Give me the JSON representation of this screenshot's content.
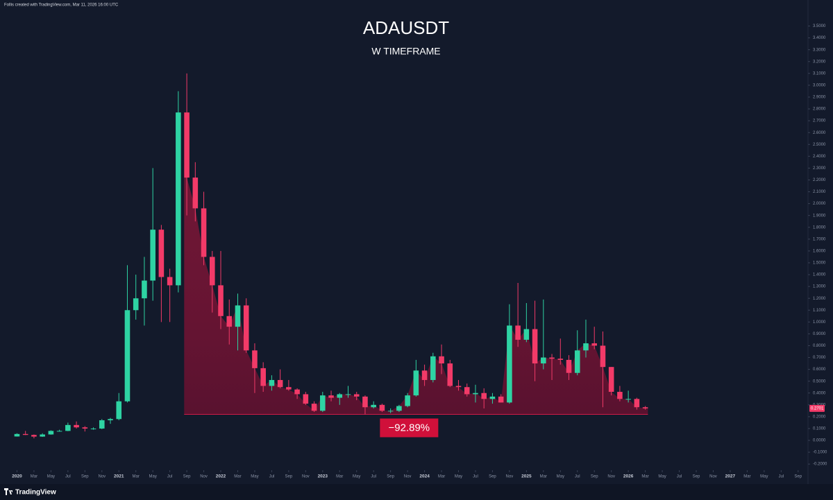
{
  "header": {
    "caption": "Follis created with TradingView.com, Mar 11, 2026 16:00 UTC"
  },
  "footer": {
    "brand": "TradingView"
  },
  "chart_data": {
    "type": "candlestick",
    "title": "ADAUSDT",
    "subtitle": "W TIMEFRAME",
    "up_color": "#2ed3a3",
    "down_color": "#f23a68",
    "x": [
      "2020-01",
      "2020-02",
      "2020-03",
      "2020-04",
      "2020-05",
      "2020-06",
      "2020-07",
      "2020-08",
      "2020-09",
      "2020-10",
      "2020-11",
      "2020-12",
      "2021-01",
      "2021-02",
      "2021-03",
      "2021-04",
      "2021-05",
      "2021-06",
      "2021-07",
      "2021-08",
      "2021-09",
      "2021-10",
      "2021-11",
      "2021-12",
      "2022-01",
      "2022-02",
      "2022-03",
      "2022-04",
      "2022-05",
      "2022-06",
      "2022-07",
      "2022-08",
      "2022-09",
      "2022-10",
      "2022-11",
      "2022-12",
      "2023-01",
      "2023-02",
      "2023-03",
      "2023-04",
      "2023-05",
      "2023-06",
      "2023-07",
      "2023-08",
      "2023-09",
      "2023-10",
      "2023-11",
      "2023-12",
      "2024-01",
      "2024-02",
      "2024-03",
      "2024-04",
      "2024-05",
      "2024-06",
      "2024-07",
      "2024-08",
      "2024-09",
      "2024-10",
      "2024-11",
      "2024-12",
      "2025-01",
      "2025-02",
      "2025-03",
      "2025-04",
      "2025-05",
      "2025-06",
      "2025-07",
      "2025-08",
      "2025-09",
      "2025-10",
      "2025-11",
      "2025-12",
      "2026-01",
      "2026-02",
      "2026-03"
    ],
    "open": [
      0.033,
      0.054,
      0.046,
      0.032,
      0.05,
      0.08,
      0.08,
      0.13,
      0.11,
      0.1,
      0.1,
      0.17,
      0.18,
      0.33,
      1.1,
      1.2,
      1.35,
      1.78,
      1.38,
      1.31,
      2.77,
      2.22,
      1.96,
      1.55,
      1.31,
      1.05,
      0.96,
      1.14,
      0.76,
      0.61,
      0.46,
      0.51,
      0.45,
      0.43,
      0.39,
      0.31,
      0.25,
      0.38,
      0.36,
      0.39,
      0.39,
      0.37,
      0.28,
      0.3,
      0.25,
      0.25,
      0.29,
      0.38,
      0.59,
      0.51,
      0.71,
      0.65,
      0.46,
      0.45,
      0.39,
      0.4,
      0.35,
      0.37,
      0.32,
      0.97,
      0.85,
      0.94,
      0.65,
      0.7,
      0.69,
      0.68,
      0.57,
      0.76,
      0.82,
      0.8,
      0.62,
      0.41,
      0.35,
      0.35,
      0.28
    ],
    "high": [
      0.06,
      0.08,
      0.05,
      0.06,
      0.085,
      0.09,
      0.15,
      0.16,
      0.12,
      0.11,
      0.18,
      0.19,
      0.4,
      1.48,
      1.4,
      1.55,
      2.3,
      1.82,
      1.45,
      2.95,
      3.1,
      2.35,
      2.1,
      1.6,
      1.6,
      1.19,
      1.24,
      1.2,
      0.82,
      0.66,
      0.55,
      0.6,
      0.51,
      0.44,
      0.41,
      0.33,
      0.41,
      0.42,
      0.4,
      0.46,
      0.41,
      0.38,
      0.33,
      0.31,
      0.27,
      0.3,
      0.4,
      0.68,
      0.64,
      0.74,
      0.81,
      0.68,
      0.51,
      0.48,
      0.47,
      0.44,
      0.4,
      0.39,
      1.15,
      1.33,
      1.16,
      1.18,
      1.19,
      0.73,
      0.86,
      0.72,
      0.93,
      1.02,
      0.96,
      0.92,
      0.62,
      0.46,
      0.42,
      0.36,
      0.29
    ],
    "low": [
      0.032,
      0.045,
      0.017,
      0.03,
      0.048,
      0.075,
      0.078,
      0.1,
      0.075,
      0.09,
      0.095,
      0.14,
      0.17,
      0.32,
      1.02,
      0.97,
      1.18,
      1.0,
      1.0,
      1.25,
      1.9,
      1.85,
      1.48,
      1.08,
      0.94,
      0.81,
      0.76,
      0.74,
      0.4,
      0.41,
      0.42,
      0.44,
      0.42,
      0.35,
      0.3,
      0.24,
      0.24,
      0.33,
      0.3,
      0.36,
      0.34,
      0.22,
      0.27,
      0.24,
      0.23,
      0.24,
      0.28,
      0.37,
      0.46,
      0.49,
      0.56,
      0.45,
      0.42,
      0.37,
      0.32,
      0.27,
      0.31,
      0.32,
      0.31,
      0.79,
      0.83,
      0.5,
      0.6,
      0.51,
      0.64,
      0.51,
      0.55,
      0.7,
      0.77,
      0.28,
      0.38,
      0.33,
      0.32,
      0.26,
      0.26
    ],
    "close": [
      0.054,
      0.046,
      0.032,
      0.05,
      0.08,
      0.08,
      0.13,
      0.11,
      0.1,
      0.1,
      0.17,
      0.18,
      0.33,
      1.1,
      1.2,
      1.35,
      1.78,
      1.38,
      1.31,
      2.77,
      2.22,
      1.96,
      1.55,
      1.31,
      1.05,
      0.96,
      1.14,
      0.76,
      0.61,
      0.46,
      0.51,
      0.45,
      0.43,
      0.39,
      0.31,
      0.25,
      0.38,
      0.36,
      0.39,
      0.39,
      0.37,
      0.28,
      0.3,
      0.25,
      0.25,
      0.29,
      0.38,
      0.59,
      0.51,
      0.71,
      0.65,
      0.46,
      0.45,
      0.39,
      0.4,
      0.35,
      0.37,
      0.32,
      0.97,
      0.85,
      0.94,
      0.65,
      0.7,
      0.69,
      0.68,
      0.57,
      0.76,
      0.82,
      0.8,
      0.62,
      0.41,
      0.35,
      0.35,
      0.28,
      0.2701
    ],
    "last_price": {
      "value": 0.2701,
      "label": "0.2701"
    },
    "range": {
      "from": "2021-09",
      "to": "2026-03",
      "low": 0.22,
      "label": "−92.89%"
    },
    "xlim": [
      "2019-11",
      "2027-10"
    ],
    "xticks": [
      {
        "value": "2020-01",
        "label": "2020"
      },
      {
        "value": "2020-03",
        "label": "Mar"
      },
      {
        "value": "2020-05",
        "label": "May"
      },
      {
        "value": "2020-07",
        "label": "Jul"
      },
      {
        "value": "2020-09",
        "label": "Sep"
      },
      {
        "value": "2020-11",
        "label": "Nov"
      },
      {
        "value": "2021-01",
        "label": "2021"
      },
      {
        "value": "2021-03",
        "label": "Mar"
      },
      {
        "value": "2021-05",
        "label": "May"
      },
      {
        "value": "2021-07",
        "label": "Jul"
      },
      {
        "value": "2021-09",
        "label": "Sep"
      },
      {
        "value": "2021-11",
        "label": "Nov"
      },
      {
        "value": "2022-01",
        "label": "2022"
      },
      {
        "value": "2022-03",
        "label": "Mar"
      },
      {
        "value": "2022-05",
        "label": "May"
      },
      {
        "value": "2022-07",
        "label": "Jul"
      },
      {
        "value": "2022-09",
        "label": "Sep"
      },
      {
        "value": "2022-11",
        "label": "Nov"
      },
      {
        "value": "2023-01",
        "label": "2023"
      },
      {
        "value": "2023-03",
        "label": "Mar"
      },
      {
        "value": "2023-05",
        "label": "May"
      },
      {
        "value": "2023-07",
        "label": "Jul"
      },
      {
        "value": "2023-09",
        "label": "Sep"
      },
      {
        "value": "2023-11",
        "label": "Nov"
      },
      {
        "value": "2024-01",
        "label": "2024"
      },
      {
        "value": "2024-03",
        "label": "Mar"
      },
      {
        "value": "2024-05",
        "label": "May"
      },
      {
        "value": "2024-07",
        "label": "Jul"
      },
      {
        "value": "2024-09",
        "label": "Sep"
      },
      {
        "value": "2024-11",
        "label": "Nov"
      },
      {
        "value": "2025-01",
        "label": "2025"
      },
      {
        "value": "2025-03",
        "label": "Mar"
      },
      {
        "value": "2025-05",
        "label": "May"
      },
      {
        "value": "2025-07",
        "label": "Jul"
      },
      {
        "value": "2025-09",
        "label": "Sep"
      },
      {
        "value": "2025-11",
        "label": "Nov"
      },
      {
        "value": "2026-01",
        "label": "2026"
      },
      {
        "value": "2026-03",
        "label": "Mar"
      },
      {
        "value": "2026-05",
        "label": "May"
      },
      {
        "value": "2026-07",
        "label": "Jul"
      },
      {
        "value": "2026-09",
        "label": "Sep"
      },
      {
        "value": "2026-11",
        "label": "Nov"
      },
      {
        "value": "2027-01",
        "label": "2027"
      },
      {
        "value": "2027-03",
        "label": "Mar"
      },
      {
        "value": "2027-05",
        "label": "May"
      },
      {
        "value": "2027-07",
        "label": "Jul"
      },
      {
        "value": "2027-09",
        "label": "Sep"
      }
    ],
    "ylim": [
      -0.24,
      3.72
    ],
    "yticks": [
      {
        "value": -0.2,
        "label": "-0.2000"
      },
      {
        "value": -0.1,
        "label": "-0.1000"
      },
      {
        "value": 0,
        "label": "0.0000"
      },
      {
        "value": 0.1,
        "label": "0.1000"
      },
      {
        "value": 0.2,
        "label": "0.2000"
      },
      {
        "value": 0.3,
        "label": "0.3000"
      },
      {
        "value": 0.4,
        "label": "0.4000"
      },
      {
        "value": 0.5,
        "label": "0.5000"
      },
      {
        "value": 0.6,
        "label": "0.6000"
      },
      {
        "value": 0.7,
        "label": "0.7000"
      },
      {
        "value": 0.8,
        "label": "0.8000"
      },
      {
        "value": 0.9,
        "label": "0.9000"
      },
      {
        "value": 1.0,
        "label": "1.0000"
      },
      {
        "value": 1.1,
        "label": "1.1000"
      },
      {
        "value": 1.2,
        "label": "1.2000"
      },
      {
        "value": 1.3,
        "label": "1.3000"
      },
      {
        "value": 1.4,
        "label": "1.4000"
      },
      {
        "value": 1.5,
        "label": "1.5000"
      },
      {
        "value": 1.6,
        "label": "1.6000"
      },
      {
        "value": 1.7,
        "label": "1.7000"
      },
      {
        "value": 1.8,
        "label": "1.8000"
      },
      {
        "value": 1.9,
        "label": "1.9000"
      },
      {
        "value": 2.0,
        "label": "2.0000"
      },
      {
        "value": 2.1,
        "label": "2.1000"
      },
      {
        "value": 2.2,
        "label": "2.2000"
      },
      {
        "value": 2.3,
        "label": "2.3000"
      },
      {
        "value": 2.4,
        "label": "2.4000"
      },
      {
        "value": 2.5,
        "label": "2.5000"
      },
      {
        "value": 2.6,
        "label": "2.6000"
      },
      {
        "value": 2.7,
        "label": "2.7000"
      },
      {
        "value": 2.8,
        "label": "2.8000"
      },
      {
        "value": 2.9,
        "label": "2.9000"
      },
      {
        "value": 3.0,
        "label": "3.0000"
      },
      {
        "value": 3.1,
        "label": "3.1000"
      },
      {
        "value": 3.2,
        "label": "3.2000"
      },
      {
        "value": 3.3,
        "label": "3.3000"
      },
      {
        "value": 3.4,
        "label": "3.4000"
      },
      {
        "value": 3.5,
        "label": "3.5000"
      }
    ]
  }
}
